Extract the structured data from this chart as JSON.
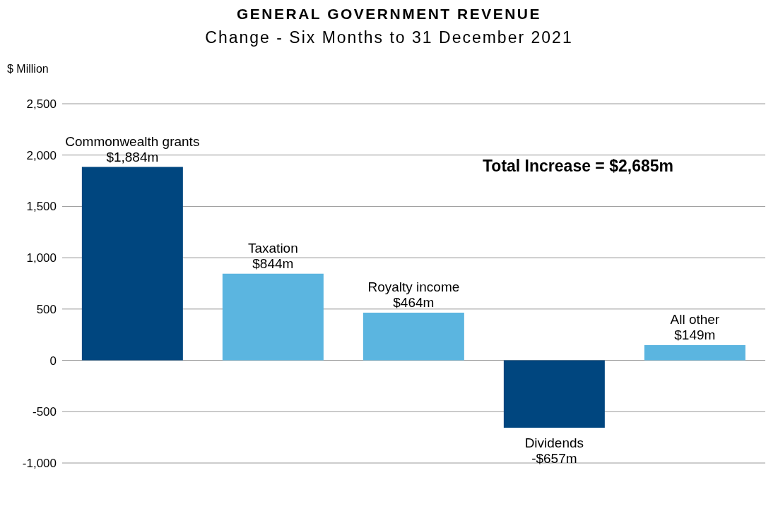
{
  "chart_data": {
    "type": "bar",
    "title": "GENERAL GOVERNMENT REVENUE",
    "subtitle": "Change - Six Months to 31 December 2021",
    "ylabel": "$ Million",
    "categories": [
      "Commonwealth grants",
      "Taxation",
      "Royalty income",
      "Dividends",
      "All other"
    ],
    "values": [
      1884,
      844,
      464,
      -657,
      149
    ],
    "colors": [
      "#00467f",
      "#5bb5e0",
      "#5bb5e0",
      "#00467f",
      "#5bb5e0"
    ],
    "value_labels": [
      "$1,884m",
      "$844m",
      "$464m",
      "-$657m",
      "$149m"
    ],
    "ylim": [
      -1000,
      2500
    ],
    "yticks": [
      {
        "value": -1000,
        "label": "-1,000"
      },
      {
        "value": -500,
        "label": "-500"
      },
      0,
      500,
      {
        "value": 1000,
        "label": "1,000"
      },
      {
        "value": 1500,
        "label": "1,500"
      },
      {
        "value": 2000,
        "label": "2,000"
      },
      {
        "value": 2500,
        "label": "2,500"
      }
    ],
    "grid": "y",
    "tick_labels": "y",
    "annotations": [
      "Total Increase = $2,685m"
    ]
  }
}
